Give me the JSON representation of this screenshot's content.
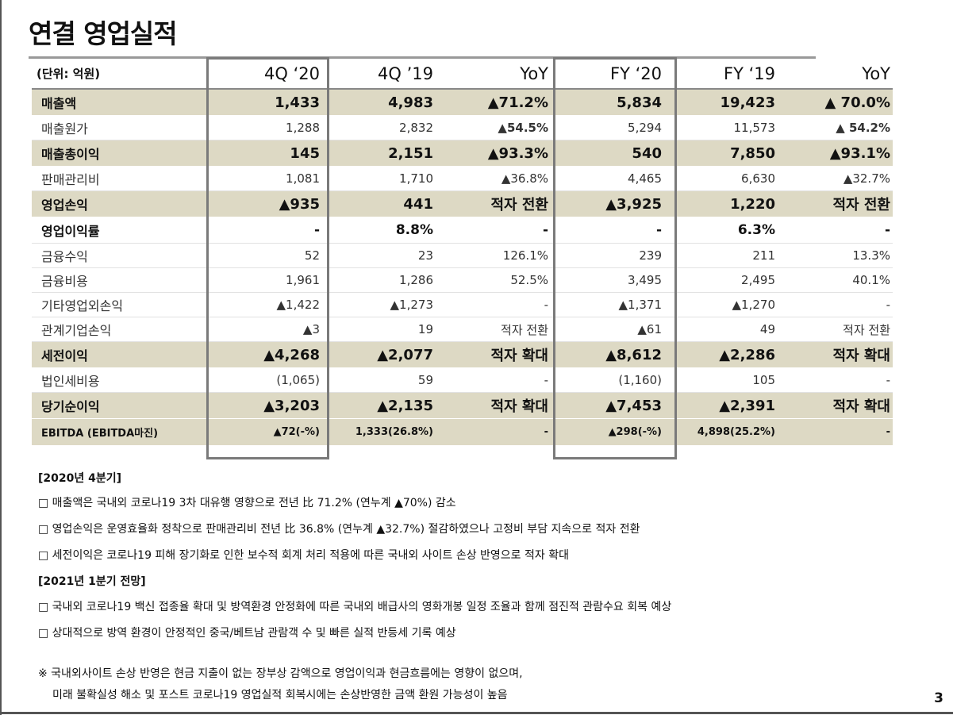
{
  "title": "연결 영업실적",
  "table": {
    "unit": "(단위: 억원)",
    "headers": [
      "4Q ‘20",
      "4Q ’19",
      "YoY",
      "FY ‘20",
      "FY ‘19",
      "YoY"
    ],
    "rows": [
      {
        "label": "매출액",
        "values": [
          "1,433",
          "4,983",
          "▲71.2%",
          "5,834",
          "19,423",
          "▲ 70.0%"
        ]
      },
      {
        "label": "매출원가",
        "values": [
          "1,288",
          "2,832",
          "▲54.5%",
          "5,294",
          "11,573",
          "▲ 54.2%"
        ]
      },
      {
        "label": "매출총이익",
        "values": [
          "145",
          "2,151",
          "▲93.3%",
          "540",
          "7,850",
          "▲93.1%"
        ]
      },
      {
        "label": "판매관리비",
        "values": [
          "1,081",
          "1,710",
          "▲36.8%",
          "4,465",
          "6,630",
          "▲32.7%"
        ]
      },
      {
        "label": "영업손익",
        "values": [
          "▲935",
          "441",
          "적자 전환",
          "▲3,925",
          "1,220",
          "적자 전환"
        ]
      },
      {
        "label": "영업이익률",
        "values": [
          "-",
          "8.8%",
          "-",
          "-",
          "6.3%",
          "-"
        ]
      },
      {
        "label": "금융수익",
        "values": [
          "52",
          "23",
          "126.1%",
          "239",
          "211",
          "13.3%"
        ]
      },
      {
        "label": "금융비용",
        "values": [
          "1,961",
          "1,286",
          "52.5%",
          "3,495",
          "2,495",
          "40.1%"
        ]
      },
      {
        "label": "기타영업외손익",
        "values": [
          "▲1,422",
          "▲1,273",
          "-",
          "▲1,371",
          "▲1,270",
          "-"
        ]
      },
      {
        "label": "관계기업손익",
        "values": [
          "▲3",
          "19",
          "적자 전환",
          "▲61",
          "49",
          "적자 전환"
        ]
      },
      {
        "label": "세전이익",
        "values": [
          "▲4,268",
          "▲2,077",
          "적자 확대",
          "▲8,612",
          "▲2,286",
          "적자 확대"
        ]
      },
      {
        "label": "법인세비용",
        "values": [
          "(1,065)",
          "59",
          "-",
          "(1,160)",
          "105",
          "-"
        ]
      },
      {
        "label": "당기순이익",
        "values": [
          "▲3,203",
          "▲2,135",
          "적자 확대",
          "▲7,453",
          "▲2,391",
          "적자 확대"
        ]
      },
      {
        "label": "EBITDA (EBITDA마진)",
        "values": [
          "▲72(-%)",
          "1,333(26.8%)",
          "-",
          "▲298(-%)",
          "4,898(25.2%)",
          "-"
        ]
      }
    ]
  },
  "sections": {
    "q4_title": "[2020년 4분기]",
    "q4_items": [
      "□ 매출액은 국내외 코로나19 3차 대유행 영향으로 전년 比 71.2% (연누계 ▲70%) 감소",
      "□ 영업손익은 운영효율화 정착으로 판매관리비 전년 比 36.8% (연누계 ▲32.7%) 절감하였으나 고정비 부담 지속으로 적자 전환",
      "□ 세전이익은 코로나19 피해 장기화로 인한 보수적 회계 처리 적용에 따른 국내외 사이트 손상 반영으로 적자 확대"
    ],
    "q1_title": "[2021년 1분기 전망]",
    "q1_items": [
      "□ 국내외 코로나19 백신 접종율 확대 및 방역환경 안정화에 따른 국내외 배급사의 영화개봉 일정 조율과 함께 점진적 관람수요 회복 예상",
      "□ 상대적으로 방역 환경이 안정적인 중국/베트남 관람객 수 및 빠른 실적 반등세 기록 예상"
    ]
  },
  "footnote": {
    "line1": "※ 국내외사이트 손상 반영은 현금 지출이 없는 장부상 감액으로 영업이익과 현금흐름에는 영향이 없으며,",
    "line2": "미래 불확실성 해소 및 포스트 코로나19 영업실적 회복시에는 손상반영한 금액 환원 가능성이 높음"
  },
  "page_number": "3",
  "colors": {
    "highlight_row_bg": "#ddd9c4",
    "border_gray": "#7a7a7a"
  }
}
